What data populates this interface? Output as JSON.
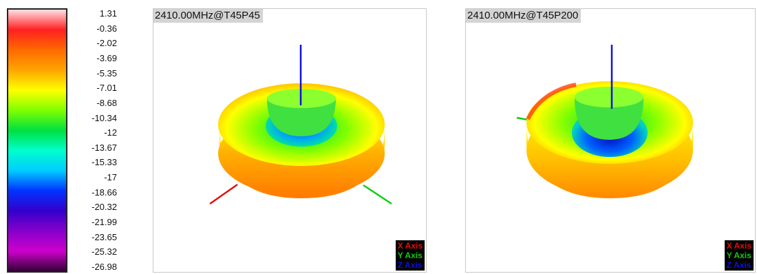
{
  "chart_data": {
    "type": "heatmap",
    "colorbar": {
      "ticks": [
        "1.31",
        "-0.36",
        "-2.02",
        "-3.69",
        "-5.35",
        "-7.01",
        "-8.68",
        "-10.34",
        "-12",
        "-13.67",
        "-15.33",
        "-17",
        "-18.66",
        "-20.32",
        "-21.99",
        "-23.65",
        "-25.32",
        "-26.98"
      ],
      "max": 1.31,
      "min": -26.98,
      "colors": [
        "#ffe0e6",
        "#ff2020",
        "#ff6a00",
        "#ffa500",
        "#ffff00",
        "#7fff00",
        "#00e040",
        "#00ffcc",
        "#00ccff",
        "#0033ff",
        "#3300cc",
        "#8800cc",
        "#cc00cc",
        "#330033"
      ]
    },
    "panels": [
      {
        "title": "2410.00MHz@T45P45",
        "legend": [
          "X Axis",
          "Y Axis",
          "Z Axis"
        ]
      },
      {
        "title": "2410.00MHz@T45P200",
        "legend": [
          "X Axis",
          "Y Axis",
          "Z Axis"
        ]
      }
    ],
    "axis_colors": {
      "x": "#e01010",
      "y": "#10cc10",
      "z": "#1010e0"
    }
  }
}
